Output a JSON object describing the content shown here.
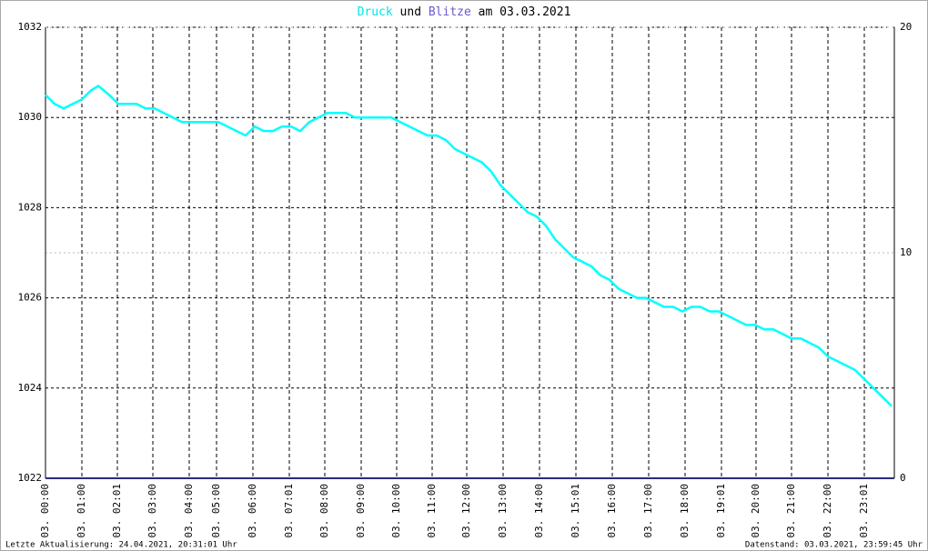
{
  "chart_data": {
    "type": "line",
    "title_connector": "und",
    "title_date": "am 03.03.2021",
    "footer_left": "Letzte Aktualisierung: 24.04.2021, 20:31:01 Uhr",
    "footer_right": "Datenstand: 03.03.2021, 23:59:45 Uhr",
    "xlim": [
      0,
      933
    ],
    "xticks": [
      {
        "value": 0,
        "label": "03. 00:00"
      },
      {
        "value": 40,
        "label": "03. 01:00"
      },
      {
        "value": 79,
        "label": "03. 02:01"
      },
      {
        "value": 118,
        "label": "03. 03:00"
      },
      {
        "value": 158,
        "label": "03. 04:00"
      },
      {
        "value": 188,
        "label": "03. 05:00"
      },
      {
        "value": 228,
        "label": "03. 06:00"
      },
      {
        "value": 268,
        "label": "03. 07:01"
      },
      {
        "value": 307,
        "label": "03. 08:00"
      },
      {
        "value": 347,
        "label": "03. 09:00"
      },
      {
        "value": 386,
        "label": "03. 10:00"
      },
      {
        "value": 425,
        "label": "03. 11:00"
      },
      {
        "value": 463,
        "label": "03. 12:00"
      },
      {
        "value": 503,
        "label": "03. 13:00"
      },
      {
        "value": 543,
        "label": "03. 14:00"
      },
      {
        "value": 583,
        "label": "03. 15:01"
      },
      {
        "value": 623,
        "label": "03. 16:00"
      },
      {
        "value": 663,
        "label": "03. 17:00"
      },
      {
        "value": 703,
        "label": "03. 18:00"
      },
      {
        "value": 743,
        "label": "03. 19:01"
      },
      {
        "value": 781,
        "label": "03. 20:00"
      },
      {
        "value": 820,
        "label": "03. 21:00"
      },
      {
        "value": 860,
        "label": "03. 22:00"
      },
      {
        "value": 900,
        "label": "03. 23:01"
      }
    ],
    "ylim": [
      1022,
      1032
    ],
    "yticks": [
      1022,
      1024,
      1026,
      1028,
      1030,
      1032
    ],
    "y2lim": [
      0,
      20
    ],
    "y2ticks": [
      0,
      10,
      20
    ],
    "grid": true,
    "series": [
      {
        "name": "Druck",
        "color": "#00ffff",
        "x": [
          0,
          10,
          20,
          30,
          40,
          50,
          58,
          70,
          80,
          90,
          100,
          110,
          120,
          130,
          140,
          150,
          160,
          170,
          180,
          190,
          200,
          210,
          220,
          230,
          240,
          250,
          260,
          270,
          280,
          290,
          300,
          310,
          320,
          330,
          340,
          350,
          360,
          370,
          380,
          390,
          400,
          410,
          420,
          430,
          440,
          450,
          460,
          470,
          480,
          490,
          500,
          510,
          520,
          530,
          540,
          550,
          560,
          570,
          580,
          590,
          600,
          610,
          620,
          630,
          640,
          650,
          660,
          670,
          680,
          690,
          700,
          710,
          720,
          730,
          740,
          750,
          760,
          770,
          780,
          790,
          800,
          810,
          820,
          830,
          840,
          850,
          860,
          870,
          880,
          890,
          900,
          910,
          920,
          930
        ],
        "values": [
          1030.5,
          1030.3,
          1030.2,
          1030.3,
          1030.4,
          1030.6,
          1030.7,
          1030.5,
          1030.3,
          1030.3,
          1030.3,
          1030.2,
          1030.2,
          1030.1,
          1030.0,
          1029.9,
          1029.9,
          1029.9,
          1029.9,
          1029.9,
          1029.8,
          1029.7,
          1029.6,
          1029.8,
          1029.7,
          1029.7,
          1029.8,
          1029.8,
          1029.7,
          1029.9,
          1030.0,
          1030.1,
          1030.1,
          1030.1,
          1030.0,
          1030.0,
          1030.0,
          1030.0,
          1030.0,
          1029.9,
          1029.8,
          1029.7,
          1029.6,
          1029.6,
          1029.5,
          1029.3,
          1029.2,
          1029.1,
          1029.0,
          1028.8,
          1028.5,
          1028.3,
          1028.1,
          1027.9,
          1027.8,
          1027.6,
          1027.3,
          1027.1,
          1026.9,
          1026.8,
          1026.7,
          1026.5,
          1026.4,
          1026.2,
          1026.1,
          1026.0,
          1026.0,
          1025.9,
          1025.8,
          1025.8,
          1025.7,
          1025.8,
          1025.8,
          1025.7,
          1025.7,
          1025.6,
          1025.5,
          1025.4,
          1025.4,
          1025.3,
          1025.3,
          1025.2,
          1025.1,
          1025.1,
          1025.0,
          1024.9,
          1024.7,
          1024.6,
          1024.5,
          1024.4,
          1024.2,
          1024.0,
          1023.8,
          1023.6
        ]
      },
      {
        "name": "Blitze",
        "color": "#2a2a80",
        "axis": "y2",
        "x": [
          0,
          933
        ],
        "values": [
          0,
          0
        ]
      }
    ]
  }
}
